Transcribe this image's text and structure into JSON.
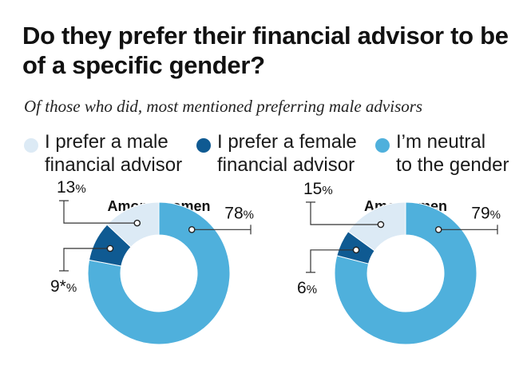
{
  "title": "Do they prefer their financial advisor to be of a specific gender?",
  "subtitle": "Of those who did, most mentioned preferring male advisors",
  "legend": [
    {
      "label": "I prefer a male\nfinancial advisor",
      "color": "#dceaf5"
    },
    {
      "label": "I prefer a female\nfinancial advisor",
      "color": "#0f5a92"
    },
    {
      "label": "I’m neutral\nto the gender",
      "color": "#4fb0dc"
    }
  ],
  "chart_data": [
    {
      "type": "pie",
      "title": "Among women",
      "categories": [
        "I prefer a male financial advisor",
        "I prefer a female financial advisor",
        "I’m neutral to the gender"
      ],
      "values": [
        13,
        9,
        78
      ],
      "value_labels": [
        "13",
        "9*",
        "78"
      ],
      "unit": "%",
      "donut": true
    },
    {
      "type": "pie",
      "title": "Among men",
      "categories": [
        "I prefer a male financial advisor",
        "I prefer a female financial advisor",
        "I’m neutral to the gender"
      ],
      "values": [
        15,
        6,
        79
      ],
      "value_labels": [
        "15",
        "6",
        "79"
      ],
      "unit": "%",
      "donut": true
    }
  ]
}
